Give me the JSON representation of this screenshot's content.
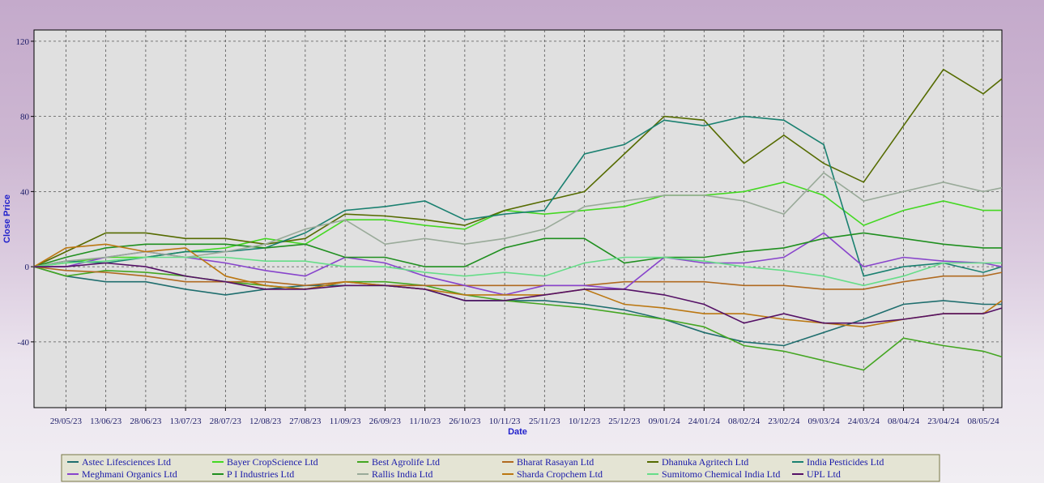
{
  "chart_data": {
    "type": "line",
    "y_label": "Close Price",
    "x_label": "Date",
    "x": [
      "17/05/23",
      "29/05/23",
      "13/06/23",
      "28/06/23",
      "13/07/23",
      "28/07/23",
      "12/08/23",
      "27/08/23",
      "11/09/23",
      "26/09/23",
      "11/10/23",
      "26/10/23",
      "10/11/23",
      "25/11/23",
      "10/12/23",
      "25/12/23",
      "09/01/24",
      "24/01/24",
      "08/02/24",
      "23/02/24",
      "09/03/24",
      "24/03/24",
      "08/04/24",
      "23/04/24",
      "08/05/24",
      "15/05/24"
    ],
    "xlim": [
      "17/05/23",
      "15/05/24"
    ],
    "xticks": [
      "29/05/23",
      "13/06/23",
      "28/06/23",
      "13/07/23",
      "28/07/23",
      "12/08/23",
      "27/08/23",
      "11/09/23",
      "26/09/23",
      "11/10/23",
      "26/10/23",
      "10/11/23",
      "25/11/23",
      "10/12/23",
      "25/12/23",
      "09/01/24",
      "24/01/24",
      "08/02/24",
      "23/02/24",
      "09/03/24",
      "24/03/24",
      "08/04/24",
      "23/04/24",
      "08/05/24"
    ],
    "ylim": [
      -75,
      126
    ],
    "yticks": [
      -40,
      0,
      40,
      80,
      120
    ],
    "grid": true,
    "legend": "bottom",
    "series": [
      {
        "name": "Astec Lifesciences Ltd",
        "color": "#1f6e6e",
        "values": [
          0,
          -5,
          -8,
          -8,
          -12,
          -15,
          -12,
          -10,
          -10,
          -10,
          -12,
          -18,
          -18,
          -18,
          -20,
          -23,
          -28,
          -35,
          -40,
          -42,
          -35,
          -28,
          -20,
          -18,
          -20,
          -20
        ]
      },
      {
        "name": "Bayer CropScience Ltd",
        "color": "#44d822",
        "values": [
          0,
          2,
          5,
          5,
          8,
          10,
          15,
          12,
          25,
          25,
          22,
          20,
          30,
          28,
          30,
          32,
          38,
          38,
          40,
          45,
          38,
          22,
          30,
          35,
          30,
          30
        ]
      },
      {
        "name": "Best Agrolife Ltd",
        "color": "#44a622",
        "values": [
          0,
          -5,
          -2,
          -3,
          -5,
          -8,
          -10,
          -12,
          -8,
          -8,
          -10,
          -15,
          -18,
          -20,
          -22,
          -25,
          -28,
          -32,
          -42,
          -45,
          -50,
          -55,
          -38,
          -42,
          -45,
          -48
        ]
      },
      {
        "name": "Bharat Rasayan Ltd",
        "color": "#b06a20",
        "values": [
          0,
          -2,
          -3,
          -5,
          -8,
          -8,
          -8,
          -10,
          -8,
          -10,
          -10,
          -10,
          -10,
          -10,
          -10,
          -8,
          -8,
          -8,
          -10,
          -10,
          -12,
          -12,
          -8,
          -5,
          -5,
          -3
        ]
      },
      {
        "name": "Dhanuka Agritech Ltd",
        "color": "#556b00",
        "values": [
          0,
          8,
          18,
          18,
          15,
          15,
          12,
          15,
          28,
          27,
          25,
          22,
          30,
          35,
          40,
          60,
          80,
          78,
          55,
          70,
          55,
          45,
          75,
          105,
          92,
          100
        ]
      },
      {
        "name": "India Pesticides Ltd",
        "color": "#1a8070",
        "values": [
          0,
          3,
          2,
          5,
          8,
          8,
          10,
          18,
          30,
          32,
          35,
          25,
          28,
          30,
          60,
          65,
          78,
          75,
          80,
          78,
          65,
          -5,
          0,
          2,
          -3,
          0
        ]
      },
      {
        "name": "Meghmani Organics Ltd",
        "color": "#8844cc",
        "values": [
          0,
          0,
          5,
          8,
          5,
          2,
          -2,
          -5,
          5,
          2,
          -5,
          -10,
          -15,
          -10,
          -10,
          -12,
          5,
          2,
          2,
          5,
          18,
          0,
          5,
          3,
          2,
          0
        ]
      },
      {
        "name": "P I Industries Ltd",
        "color": "#1f8f1f",
        "values": [
          0,
          5,
          10,
          12,
          12,
          12,
          10,
          12,
          5,
          5,
          0,
          0,
          10,
          15,
          15,
          2,
          5,
          5,
          8,
          10,
          15,
          18,
          15,
          12,
          10,
          10
        ]
      },
      {
        "name": "Rallis India Ltd",
        "color": "#99aa99",
        "values": [
          0,
          3,
          5,
          8,
          5,
          8,
          12,
          20,
          25,
          12,
          15,
          12,
          15,
          20,
          32,
          35,
          38,
          38,
          35,
          28,
          50,
          35,
          40,
          45,
          40,
          42
        ]
      },
      {
        "name": "Sharda Cropchem Ltd",
        "color": "#bb7711",
        "values": [
          0,
          10,
          12,
          8,
          10,
          -5,
          -10,
          -12,
          -8,
          -10,
          -12,
          -15,
          -15,
          -15,
          -12,
          -20,
          -22,
          -25,
          -25,
          -28,
          -30,
          -32,
          -28,
          -25,
          -25,
          -18
        ]
      },
      {
        "name": "Sumitomo Chemical India Ltd",
        "color": "#66dd88",
        "values": [
          0,
          2,
          3,
          5,
          5,
          5,
          3,
          3,
          0,
          0,
          -3,
          -5,
          -3,
          -5,
          2,
          5,
          5,
          3,
          0,
          -2,
          -5,
          -10,
          -5,
          2,
          2,
          2
        ]
      },
      {
        "name": "UPL Ltd",
        "color": "#551166",
        "values": [
          0,
          0,
          2,
          0,
          -5,
          -8,
          -12,
          -12,
          -10,
          -10,
          -12,
          -18,
          -18,
          -15,
          -12,
          -12,
          -15,
          -20,
          -30,
          -25,
          -30,
          -30,
          -28,
          -25,
          -25,
          -22
        ]
      }
    ]
  }
}
